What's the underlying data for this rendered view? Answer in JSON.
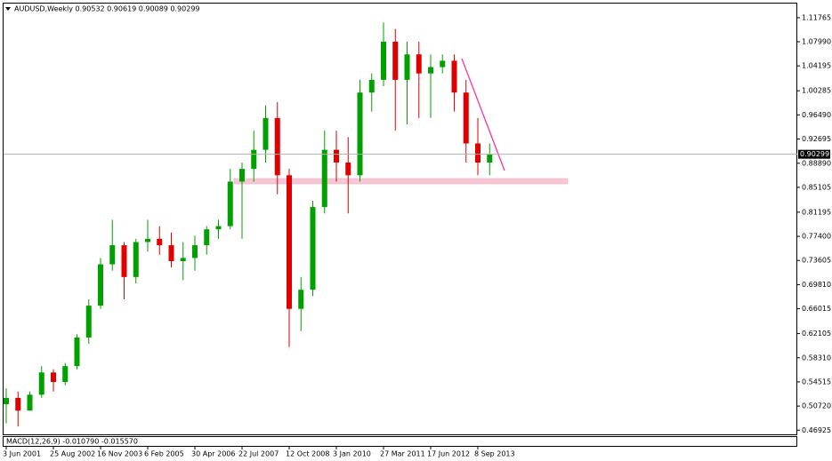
{
  "chart_data": {
    "type": "candlestick",
    "title": "AUDUSD,Weekly  0.90532 0.90619 0.90089 0.90299",
    "indicator_label": "MACD(12,26,9) -0.010790 -0.015570",
    "categories": [
      "3 Jun 2001",
      null,
      null,
      null,
      "25 Aug 2002",
      null,
      null,
      null,
      "16 Nov 2003",
      null,
      null,
      null,
      "6 Feb 2005",
      null,
      null,
      null,
      "30 Apr 2006",
      null,
      null,
      null,
      "22 Jul 2007",
      null,
      null,
      null,
      "12 Oct 2008",
      null,
      null,
      null,
      "3 Jan 2010",
      null,
      null,
      null,
      "27 Mar 2011",
      null,
      null,
      null,
      "17 Jun 2012",
      null,
      null,
      null,
      "8 Sep 2013",
      null
    ],
    "open": [
      0.51,
      0.52,
      0.5,
      0.525,
      0.56,
      0.545,
      0.57,
      0.615,
      0.665,
      0.73,
      0.76,
      0.71,
      0.765,
      0.77,
      0.76,
      0.735,
      0.74,
      0.76,
      0.785,
      0.79,
      0.86,
      0.88,
      0.91,
      0.96,
      0.87,
      0.66,
      0.69,
      0.82,
      0.91,
      0.89,
      0.87,
      1.0,
      1.02,
      1.08,
      1.02,
      1.06,
      1.03,
      1.04,
      1.05,
      1.0,
      0.92,
      0.89
    ],
    "high": [
      0.535,
      0.53,
      0.53,
      0.57,
      0.565,
      0.575,
      0.62,
      0.675,
      0.74,
      0.8,
      0.765,
      0.77,
      0.8,
      0.79,
      0.78,
      0.765,
      0.775,
      0.79,
      0.8,
      0.88,
      0.89,
      0.94,
      0.98,
      0.985,
      0.88,
      0.71,
      0.83,
      0.94,
      0.94,
      0.93,
      1.02,
      1.03,
      1.11,
      1.1,
      1.08,
      1.08,
      1.06,
      1.06,
      1.06,
      1.02,
      0.96,
      0.92
    ],
    "low": [
      0.48,
      0.475,
      0.5,
      0.52,
      0.53,
      0.54,
      0.565,
      0.605,
      0.66,
      0.72,
      0.675,
      0.7,
      0.75,
      0.745,
      0.725,
      0.705,
      0.72,
      0.745,
      0.77,
      0.785,
      0.77,
      0.86,
      0.89,
      0.84,
      0.6,
      0.625,
      0.68,
      0.81,
      0.86,
      0.81,
      0.86,
      0.97,
      1.01,
      0.94,
      0.95,
      0.96,
      0.96,
      1.03,
      0.97,
      0.89,
      0.87,
      0.87
    ],
    "close": [
      0.52,
      0.5,
      0.525,
      0.56,
      0.545,
      0.57,
      0.615,
      0.665,
      0.73,
      0.76,
      0.71,
      0.765,
      0.77,
      0.76,
      0.735,
      0.74,
      0.76,
      0.785,
      0.79,
      0.86,
      0.88,
      0.91,
      0.96,
      0.87,
      0.66,
      0.69,
      0.82,
      0.91,
      0.89,
      0.87,
      1.0,
      1.02,
      1.08,
      1.02,
      1.06,
      1.03,
      1.04,
      1.05,
      1.0,
      0.92,
      0.89,
      0.90299
    ],
    "up_color": "#00a000",
    "down_color": "#e00000",
    "last_price": 0.90299,
    "ylim": [
      0.4627,
      1.1399
    ],
    "yticks": [
      1.11765,
      {
        "value": 1.0799,
        "label": "1.07990"
      },
      1.04195,
      1.00285,
      {
        "value": 0.9649,
        "label": "0.96490"
      },
      0.92695,
      {
        "value": 0.8889,
        "label": "0.88890"
      },
      0.85105,
      0.81195,
      {
        "value": 0.774,
        "label": "0.77400"
      },
      0.73605,
      {
        "value": 0.6981,
        "label": "0.69810"
      },
      0.66015,
      0.62105,
      {
        "value": 0.5831,
        "label": "0.58310"
      },
      0.54515,
      {
        "value": 0.5072,
        "label": "0.50720"
      },
      0.46925
    ]
  }
}
